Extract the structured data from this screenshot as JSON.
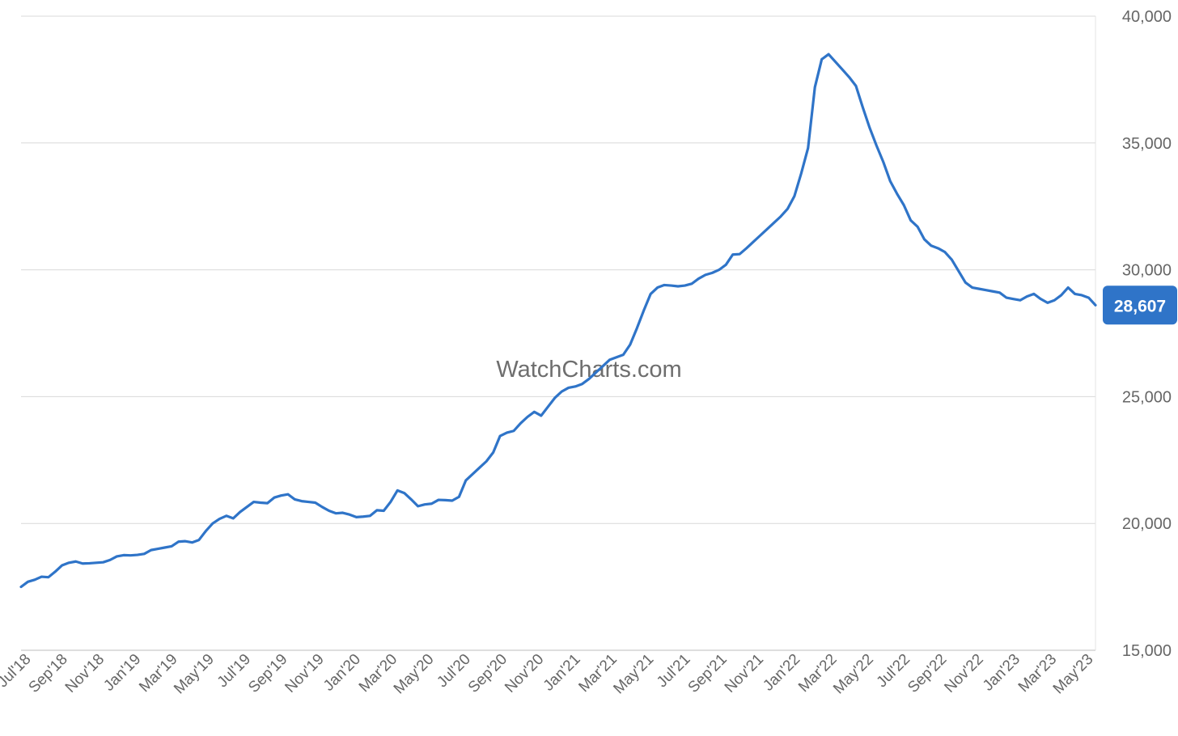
{
  "watermark": "WatchCharts.com",
  "colors": {
    "line": "#2f74c8",
    "badge": "#2f74c8",
    "grid": "#d9d9d9",
    "text": "#666666"
  },
  "chart_data": {
    "type": "line",
    "title": "",
    "xlabel": "",
    "ylabel": "",
    "ylim": [
      15000,
      40000
    ],
    "yticks": [
      "15,000",
      "20,000",
      "25,000",
      "30,000",
      "35,000",
      "40,000"
    ],
    "ytick_values": [
      15000,
      20000,
      25000,
      30000,
      35000,
      40000
    ],
    "y_axis_side": "right",
    "grid": true,
    "x_tick_labels": [
      "Jul'18",
      "Sep'18",
      "Nov'18",
      "Jan'19",
      "Mar'19",
      "May'19",
      "Jul'19",
      "Sep'19",
      "Nov'19",
      "Jan'20",
      "Mar'20",
      "May'20",
      "Jul'20",
      "Sep'20",
      "Nov'20",
      "Jan'21",
      "Mar'21",
      "May'21",
      "Jul'21",
      "Sep'21",
      "Nov'21",
      "Jan'22",
      "Mar'22",
      "May'22",
      "Jul'22",
      "Sep'22",
      "Nov'22",
      "Jan'23",
      "Mar'23",
      "May'23"
    ],
    "last_value_label": "28,607",
    "series": [
      {
        "x_start": "Jul'18",
        "x_end": "May'23",
        "values": [
          17500,
          17700,
          17780,
          17900,
          17880,
          18100,
          18350,
          18450,
          18500,
          18420,
          18430,
          18450,
          18470,
          18560,
          18700,
          18750,
          18740,
          18760,
          18800,
          18950,
          19000,
          19050,
          19100,
          19280,
          19300,
          19250,
          19350,
          19700,
          20000,
          20180,
          20300,
          20200,
          20450,
          20650,
          20850,
          20820,
          20800,
          21020,
          21100,
          21150,
          20950,
          20880,
          20850,
          20820,
          20650,
          20500,
          20400,
          20420,
          20350,
          20250,
          20270,
          20300,
          20520,
          20500,
          20850,
          21300,
          21200,
          20950,
          20680,
          20750,
          20780,
          20930,
          20920,
          20900,
          21050,
          21700,
          21950,
          22200,
          22450,
          22800,
          23450,
          23580,
          23650,
          23950,
          24200,
          24400,
          24250,
          24600,
          24950,
          25200,
          25350,
          25400,
          25500,
          25700,
          25950,
          26200,
          26450,
          26550,
          26650,
          27050,
          27700,
          28400,
          29050,
          29300,
          29400,
          29380,
          29350,
          29380,
          29450,
          29650,
          29800,
          29880,
          30000,
          30200,
          30600,
          30620,
          30850,
          31100,
          31350,
          31600,
          31850,
          32100,
          32400,
          32900,
          33800,
          34800,
          37200,
          38300,
          38500,
          38200,
          37900,
          37600,
          37250,
          36400,
          35600,
          34900,
          34250,
          33500,
          33000,
          32550,
          31950,
          31700,
          31200,
          30950,
          30850,
          30700,
          30400,
          29950,
          29500,
          29300,
          29250,
          29200,
          29150,
          29100,
          28900,
          28850,
          28800,
          28950,
          29050,
          28850,
          28700,
          28800,
          29000,
          29300,
          29050,
          29000,
          28900,
          28607
        ]
      }
    ]
  }
}
